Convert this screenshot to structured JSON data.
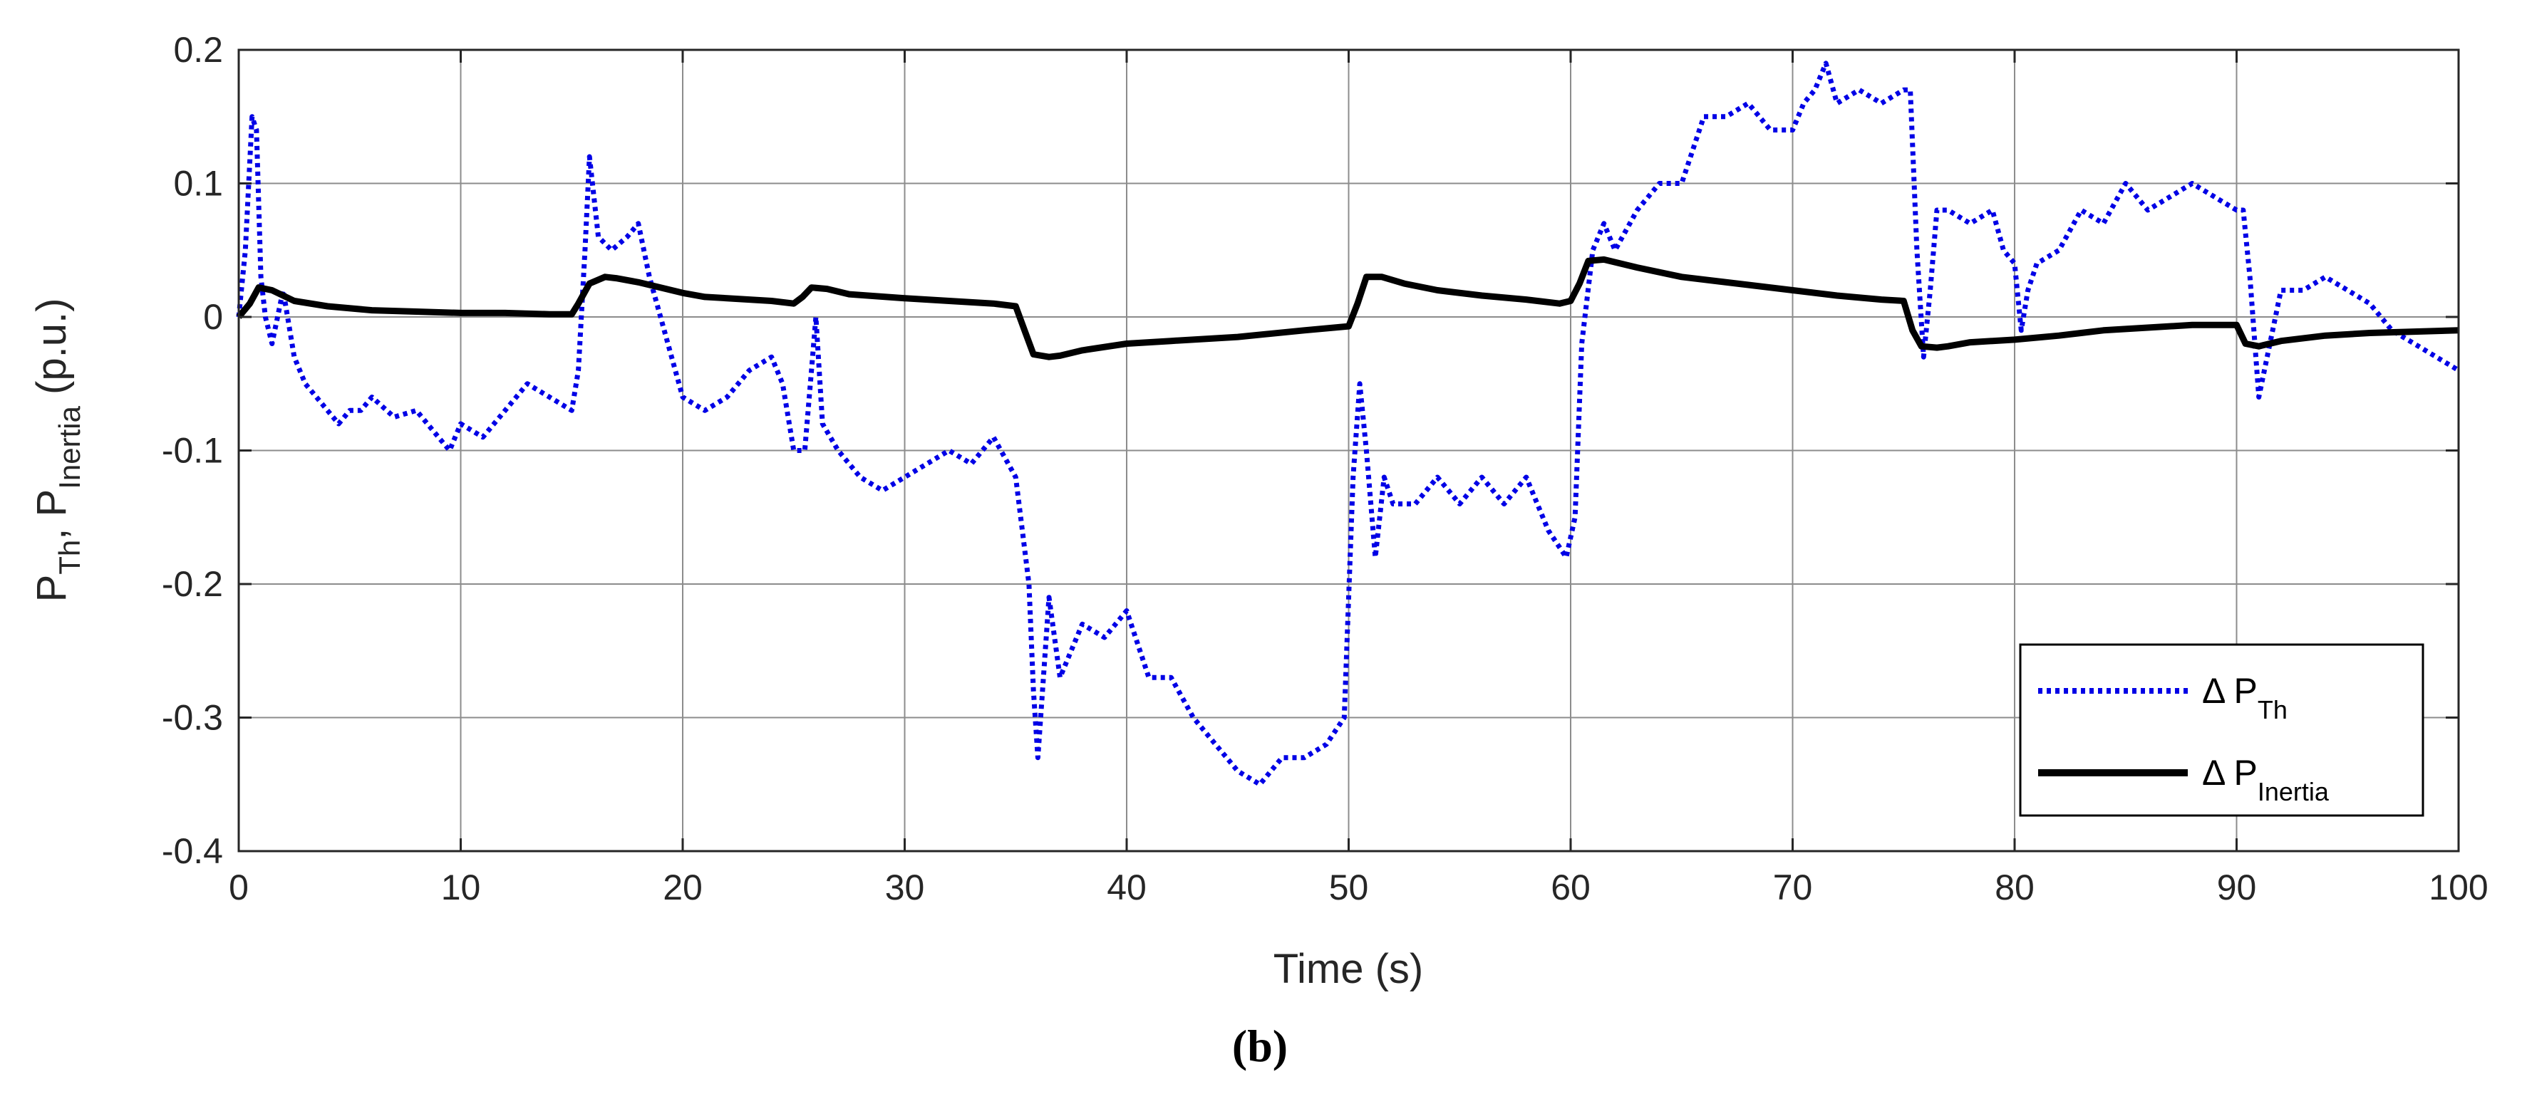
{
  "chart_data": {
    "type": "line",
    "xlabel": "Time (s)",
    "ylabel": {
      "parts": [
        {
          "text": "P",
          "sub": false
        },
        {
          "text": "Th",
          "sub": true
        },
        {
          "text": ", P",
          "sub": false
        },
        {
          "text": "Inertia",
          "sub": true
        },
        {
          "text": " (p.u.)",
          "sub": false
        }
      ]
    },
    "xlim": [
      0,
      100
    ],
    "ylim": [
      -0.4,
      0.2
    ],
    "xticks": [
      0,
      10,
      20,
      30,
      40,
      50,
      60,
      70,
      80,
      90,
      100
    ],
    "xtick_labels": [
      "0",
      "10",
      "20",
      "30",
      "40",
      "50",
      "60",
      "70",
      "80",
      "90",
      "100"
    ],
    "yticks": [
      -0.4,
      -0.3,
      -0.2,
      -0.1,
      0,
      0.1,
      0.2
    ],
    "ytick_labels": [
      "-0.4",
      "-0.3",
      "-0.2",
      "-0.1",
      "0",
      "0.1",
      "0.2"
    ],
    "grid": true,
    "legend_position": "bottom-right",
    "caption": "(b)",
    "series": [
      {
        "name": "Δ P_Th",
        "legend_main": "Δ P",
        "legend_sub": "Th",
        "color": "#0000e6",
        "style": "dotted",
        "x": [
          0,
          0.3,
          0.6,
          0.8,
          1.0,
          1.2,
          1.5,
          2.0,
          2.5,
          3.0,
          3.5,
          4.0,
          4.5,
          5.0,
          5.5,
          6.0,
          7.0,
          8.0,
          9.0,
          9.5,
          10.0,
          11.0,
          12.0,
          13.0,
          14.0,
          15.0,
          15.3,
          15.6,
          15.8,
          16.2,
          16.8,
          17.5,
          18.0,
          18.5,
          19.0,
          19.5,
          20.0,
          21.0,
          22.0,
          23.0,
          24.0,
          24.5,
          25.0,
          25.5,
          25.8,
          26.0,
          26.3,
          27.0,
          28.0,
          29.0,
          30.0,
          31.0,
          32.0,
          33.0,
          34.0,
          35.0,
          35.3,
          35.6,
          35.8,
          36.0,
          36.5,
          37.0,
          38.0,
          39.0,
          40.0,
          41.0,
          42.0,
          43.0,
          44.0,
          45.0,
          46.0,
          47.0,
          48.0,
          49.0,
          49.8,
          50.2,
          50.5,
          50.8,
          51.2,
          51.6,
          52.0,
          53.0,
          54.0,
          55.0,
          56.0,
          57.0,
          58.0,
          59.0,
          59.8,
          60.2,
          60.5,
          61.0,
          61.5,
          62.0,
          63.0,
          64.0,
          65.0,
          66.0,
          67.0,
          68.0,
          69.0,
          70.0,
          70.5,
          71.0,
          71.5,
          72.0,
          73.0,
          74.0,
          75.0,
          75.3,
          75.6,
          75.9,
          76.2,
          76.5,
          77.0,
          78.0,
          79.0,
          79.5,
          80.0,
          80.3,
          80.6,
          81.0,
          82.0,
          83.0,
          84.0,
          85.0,
          86.0,
          87.0,
          88.0,
          89.0,
          90.0,
          90.3,
          90.6,
          91.0,
          92.0,
          93.0,
          94.0,
          95.0,
          96.0,
          97.0,
          98.0,
          99.0,
          100.0
        ],
        "y": [
          0.0,
          0.05,
          0.15,
          0.14,
          0.03,
          0.0,
          -0.02,
          0.02,
          -0.03,
          -0.05,
          -0.06,
          -0.07,
          -0.08,
          -0.07,
          -0.07,
          -0.06,
          -0.075,
          -0.07,
          -0.09,
          -0.1,
          -0.08,
          -0.09,
          -0.07,
          -0.05,
          -0.06,
          -0.07,
          -0.04,
          0.05,
          0.12,
          0.06,
          0.05,
          0.06,
          0.07,
          0.03,
          0.0,
          -0.03,
          -0.06,
          -0.07,
          -0.06,
          -0.04,
          -0.03,
          -0.05,
          -0.1,
          -0.1,
          -0.04,
          0.0,
          -0.08,
          -0.1,
          -0.12,
          -0.13,
          -0.12,
          -0.11,
          -0.1,
          -0.11,
          -0.09,
          -0.12,
          -0.16,
          -0.2,
          -0.28,
          -0.33,
          -0.21,
          -0.27,
          -0.23,
          -0.24,
          -0.22,
          -0.27,
          -0.27,
          -0.3,
          -0.32,
          -0.34,
          -0.35,
          -0.33,
          -0.33,
          -0.32,
          -0.3,
          -0.12,
          -0.05,
          -0.1,
          -0.18,
          -0.12,
          -0.14,
          -0.14,
          -0.12,
          -0.14,
          -0.12,
          -0.14,
          -0.12,
          -0.16,
          -0.18,
          -0.15,
          -0.02,
          0.05,
          0.07,
          0.05,
          0.08,
          0.1,
          0.1,
          0.15,
          0.15,
          0.16,
          0.14,
          0.14,
          0.16,
          0.17,
          0.19,
          0.16,
          0.17,
          0.16,
          0.17,
          0.17,
          0.05,
          -0.03,
          0.02,
          0.08,
          0.08,
          0.07,
          0.08,
          0.05,
          0.04,
          -0.01,
          0.02,
          0.04,
          0.05,
          0.08,
          0.07,
          0.1,
          0.08,
          0.09,
          0.1,
          0.09,
          0.08,
          0.08,
          0.03,
          -0.06,
          0.02,
          0.02,
          0.03,
          0.02,
          0.01,
          -0.01,
          -0.02,
          -0.03,
          -0.04
        ]
      },
      {
        "name": "Δ P_Inertia",
        "legend_main": "Δ P",
        "legend_sub": "Inertia",
        "color": "#000000",
        "style": "solid",
        "x": [
          0,
          0.5,
          0.9,
          1.5,
          2.5,
          4.0,
          6.0,
          8.0,
          10.0,
          12.0,
          14.0,
          15.0,
          15.3,
          15.8,
          16.5,
          17.0,
          18.0,
          19.0,
          20.0,
          21.0,
          22.0,
          24.0,
          25.0,
          25.4,
          25.8,
          26.5,
          27.5,
          30.0,
          32.0,
          34.0,
          35.0,
          35.4,
          35.8,
          36.5,
          37.0,
          38.0,
          40.0,
          42.0,
          45.0,
          48.0,
          50.0,
          50.4,
          50.8,
          51.5,
          52.5,
          54.0,
          56.0,
          58.0,
          59.5,
          60.0,
          60.4,
          60.8,
          61.5,
          63.0,
          65.0,
          68.0,
          70.0,
          72.0,
          74.0,
          75.0,
          75.4,
          75.8,
          76.5,
          77.0,
          78.0,
          80.0,
          82.0,
          84.0,
          86.0,
          88.0,
          90.0,
          90.4,
          91.0,
          92.0,
          94.0,
          96.0,
          98.0,
          100.0
        ],
        "y": [
          0.0,
          0.01,
          0.022,
          0.02,
          0.012,
          0.008,
          0.005,
          0.004,
          0.003,
          0.003,
          0.002,
          0.002,
          0.01,
          0.025,
          0.03,
          0.029,
          0.026,
          0.022,
          0.018,
          0.015,
          0.014,
          0.012,
          0.01,
          0.015,
          0.022,
          0.021,
          0.017,
          0.014,
          0.012,
          0.01,
          0.008,
          -0.01,
          -0.028,
          -0.03,
          -0.029,
          -0.025,
          -0.02,
          -0.018,
          -0.015,
          -0.01,
          -0.007,
          0.01,
          0.03,
          0.03,
          0.025,
          0.02,
          0.016,
          0.013,
          0.01,
          0.012,
          0.025,
          0.042,
          0.043,
          0.037,
          0.03,
          0.024,
          0.02,
          0.016,
          0.013,
          0.012,
          -0.01,
          -0.022,
          -0.023,
          -0.022,
          -0.019,
          -0.017,
          -0.014,
          -0.01,
          -0.008,
          -0.006,
          -0.006,
          -0.02,
          -0.022,
          -0.018,
          -0.014,
          -0.012,
          -0.011,
          -0.01
        ]
      }
    ]
  }
}
